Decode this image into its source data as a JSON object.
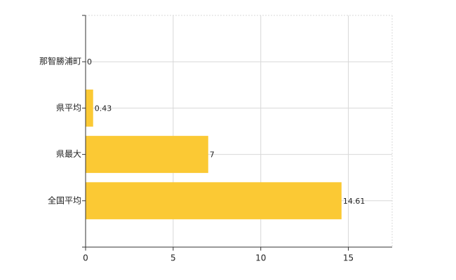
{
  "chart_data": {
    "type": "bar",
    "orientation": "horizontal",
    "categories": [
      "那智勝浦町",
      "県平均",
      "県最大",
      "全国平均"
    ],
    "values": [
      0,
      0.43,
      7,
      14.61
    ],
    "color": "#fbc934",
    "xlim": [
      0,
      17.5
    ],
    "xticks": [
      0,
      5,
      10,
      15
    ],
    "grid": true
  }
}
